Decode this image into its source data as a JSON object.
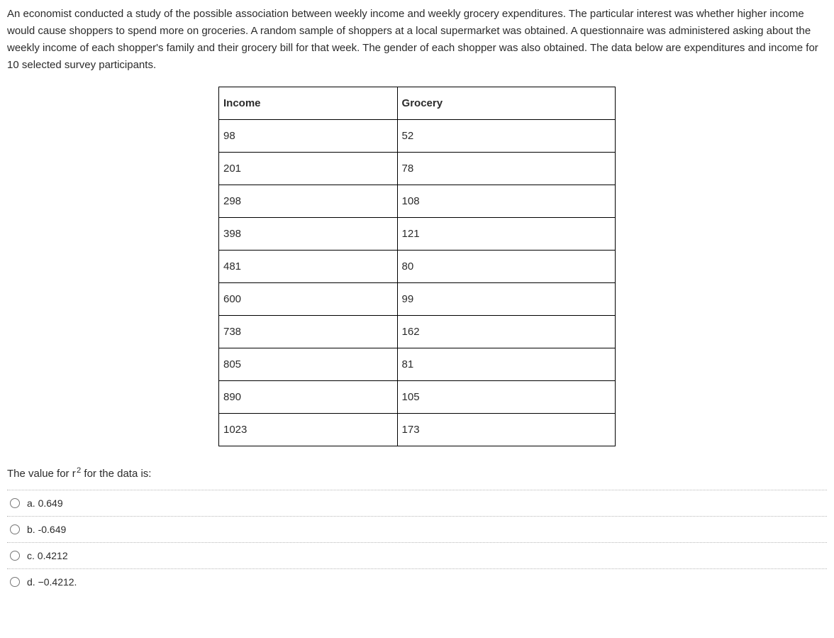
{
  "intro": "An economist conducted a study of the possible association between weekly income and weekly grocery expenditures. The particular interest was whether higher income would cause shoppers to spend more on groceries. A random sample of shoppers at a local supermarket was obtained. A questionnaire was administered asking about the weekly income of each shopper's family and their grocery bill for that week. The gender of each shopper was also obtained. The data below are expenditures and income for 10 selected survey participants.",
  "table": {
    "columns": [
      "Income",
      "Grocery"
    ],
    "rows": [
      [
        "98",
        "52"
      ],
      [
        "201",
        "78"
      ],
      [
        "298",
        "108"
      ],
      [
        "398",
        "121"
      ],
      [
        "481",
        "80"
      ],
      [
        "600",
        "99"
      ],
      [
        "738",
        "162"
      ],
      [
        "805",
        "81"
      ],
      [
        "890",
        "105"
      ],
      [
        "1023",
        "173"
      ]
    ],
    "border_color": "#000000",
    "font_size": 15
  },
  "question": {
    "prefix": "The value for r",
    "sup": "2",
    "suffix": " for the data is:"
  },
  "options": [
    {
      "label": "a. 0.649"
    },
    {
      "label": "b. -0.649"
    },
    {
      "label": "c. 0.4212"
    },
    {
      "label": "d. −0.4212."
    }
  ],
  "colors": {
    "text": "#2b2b2b",
    "background": "#ffffff",
    "divider": "#b8b8b8"
  }
}
